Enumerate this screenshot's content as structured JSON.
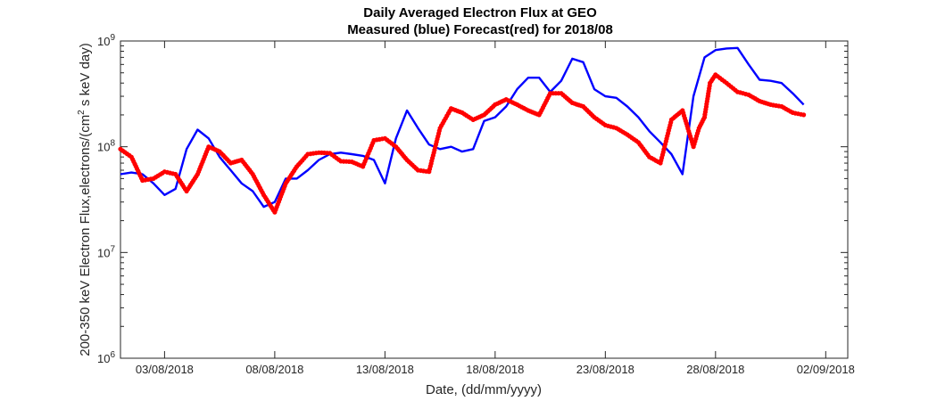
{
  "chart_data": {
    "type": "line",
    "title": "Daily Averaged Electron Flux at GEO",
    "subtitle": "Measured (blue) Forecast(red) for 2018/08",
    "xlabel": "Date, (dd/mm/yyyy)",
    "ylabel": {
      "prefix": "200-350 keV Electron Flux,electrons/(cm",
      "superscript": "2",
      "suffix": " s keV day)"
    },
    "y_scale": "log",
    "ylim": [
      1000000,
      1000000000
    ],
    "y_ticks": [
      {
        "value": 1000000,
        "base": "10",
        "exp": "6"
      },
      {
        "value": 10000000,
        "base": "10",
        "exp": "7"
      },
      {
        "value": 100000000,
        "base": "10",
        "exp": "8"
      },
      {
        "value": 1000000000,
        "base": "10",
        "exp": "9"
      }
    ],
    "x_range": [
      "2018-08-01",
      "2018-09-03"
    ],
    "x_ticks": [
      {
        "date": "2018-08-03",
        "label": "03/08/2018"
      },
      {
        "date": "2018-08-08",
        "label": "08/08/2018"
      },
      {
        "date": "2018-08-13",
        "label": "13/08/2018"
      },
      {
        "date": "2018-08-18",
        "label": "18/08/2018"
      },
      {
        "date": "2018-08-23",
        "label": "23/08/2018"
      },
      {
        "date": "2018-08-28",
        "label": "28/08/2018"
      },
      {
        "date": "2018-09-02",
        "label": "02/09/2018"
      }
    ],
    "grid": false,
    "colors": {
      "measured": "#0000ff",
      "forecast": "#ff0000",
      "axes": "#262626"
    },
    "series": [
      {
        "key": "measured",
        "style": "line",
        "x": [
          "2018-08-01",
          "2018-08-01 12:00",
          "2018-08-02",
          "2018-08-02 12:00",
          "2018-08-03",
          "2018-08-03 12:00",
          "2018-08-04",
          "2018-08-04 12:00",
          "2018-08-05",
          "2018-08-05 12:00",
          "2018-08-06",
          "2018-08-06 12:00",
          "2018-08-07",
          "2018-08-07 12:00",
          "2018-08-08",
          "2018-08-08 12:00",
          "2018-08-09",
          "2018-08-09 12:00",
          "2018-08-10",
          "2018-08-10 12:00",
          "2018-08-11",
          "2018-08-11 12:00",
          "2018-08-12",
          "2018-08-12 12:00",
          "2018-08-13",
          "2018-08-13 12:00",
          "2018-08-14",
          "2018-08-14 12:00",
          "2018-08-15",
          "2018-08-15 12:00",
          "2018-08-16",
          "2018-08-16 12:00",
          "2018-08-17",
          "2018-08-17 12:00",
          "2018-08-18",
          "2018-08-18 12:00",
          "2018-08-19",
          "2018-08-19 12:00",
          "2018-08-20",
          "2018-08-20 12:00",
          "2018-08-21",
          "2018-08-21 12:00",
          "2018-08-22",
          "2018-08-22 12:00",
          "2018-08-23",
          "2018-08-23 12:00",
          "2018-08-24",
          "2018-08-24 12:00",
          "2018-08-25",
          "2018-08-25 12:00",
          "2018-08-26",
          "2018-08-26 12:00",
          "2018-08-27",
          "2018-08-27 12:00",
          "2018-08-28",
          "2018-08-28 12:00",
          "2018-08-29",
          "2018-08-29 12:00",
          "2018-08-30",
          "2018-08-30 12:00",
          "2018-08-31",
          "2018-08-31 12:00",
          "2018-09-01"
        ],
        "values": [
          55000000,
          57000000,
          55000000,
          45000000,
          35000000,
          40000000,
          95000000,
          145000000,
          120000000,
          80000000,
          60000000,
          45000000,
          38000000,
          27000000,
          30000000,
          50000000,
          50000000,
          60000000,
          75000000,
          85000000,
          88000000,
          85000000,
          82000000,
          75000000,
          45000000,
          120000000,
          220000000,
          150000000,
          105000000,
          95000000,
          100000000,
          90000000,
          95000000,
          175000000,
          190000000,
          240000000,
          350000000,
          450000000,
          450000000,
          330000000,
          420000000,
          680000000,
          630000000,
          350000000,
          300000000,
          290000000,
          240000000,
          190000000,
          140000000,
          110000000,
          85000000,
          55000000,
          300000000,
          700000000,
          820000000,
          850000000,
          860000000,
          600000000,
          430000000,
          420000000,
          400000000,
          320000000,
          250000000
        ]
      },
      {
        "key": "forecast",
        "style": "markers",
        "x": [
          "2018-08-01",
          "2018-08-01 12:00",
          "2018-08-02",
          "2018-08-02 12:00",
          "2018-08-03",
          "2018-08-03 12:00",
          "2018-08-04",
          "2018-08-04 12:00",
          "2018-08-05",
          "2018-08-05 12:00",
          "2018-08-06",
          "2018-08-06 12:00",
          "2018-08-07",
          "2018-08-07 12:00",
          "2018-08-08",
          "2018-08-08 12:00",
          "2018-08-09",
          "2018-08-09 12:00",
          "2018-08-10",
          "2018-08-10 12:00",
          "2018-08-11",
          "2018-08-11 12:00",
          "2018-08-12",
          "2018-08-12 12:00",
          "2018-08-13",
          "2018-08-13 12:00",
          "2018-08-14",
          "2018-08-14 12:00",
          "2018-08-15",
          "2018-08-15 12:00",
          "2018-08-16",
          "2018-08-16 12:00",
          "2018-08-17",
          "2018-08-17 12:00",
          "2018-08-18",
          "2018-08-18 12:00",
          "2018-08-19",
          "2018-08-19 12:00",
          "2018-08-20",
          "2018-08-20 12:00",
          "2018-08-21",
          "2018-08-21 12:00",
          "2018-08-22",
          "2018-08-22 12:00",
          "2018-08-23",
          "2018-08-23 12:00",
          "2018-08-24",
          "2018-08-24 12:00",
          "2018-08-25",
          "2018-08-25 12:00",
          "2018-08-26",
          "2018-08-26 12:00",
          "2018-08-27",
          "2018-08-27 06:00",
          "2018-08-27 12:00",
          "2018-08-27 18:00",
          "2018-08-28",
          "2018-08-28 12:00",
          "2018-08-29",
          "2018-08-29 12:00",
          "2018-08-30",
          "2018-08-30 12:00",
          "2018-08-31",
          "2018-08-31 12:00",
          "2018-09-01"
        ],
        "values": [
          95000000,
          80000000,
          48000000,
          50000000,
          58000000,
          55000000,
          38000000,
          55000000,
          100000000,
          90000000,
          70000000,
          75000000,
          55000000,
          35000000,
          24000000,
          45000000,
          65000000,
          85000000,
          88000000,
          87000000,
          73000000,
          72000000,
          65000000,
          115000000,
          120000000,
          100000000,
          75000000,
          60000000,
          58000000,
          150000000,
          230000000,
          210000000,
          180000000,
          200000000,
          250000000,
          280000000,
          250000000,
          220000000,
          200000000,
          320000000,
          320000000,
          260000000,
          240000000,
          190000000,
          160000000,
          150000000,
          130000000,
          110000000,
          80000000,
          70000000,
          180000000,
          220000000,
          100000000,
          150000000,
          190000000,
          400000000,
          480000000,
          400000000,
          330000000,
          310000000,
          270000000,
          250000000,
          240000000,
          210000000,
          200000000
        ]
      }
    ]
  }
}
